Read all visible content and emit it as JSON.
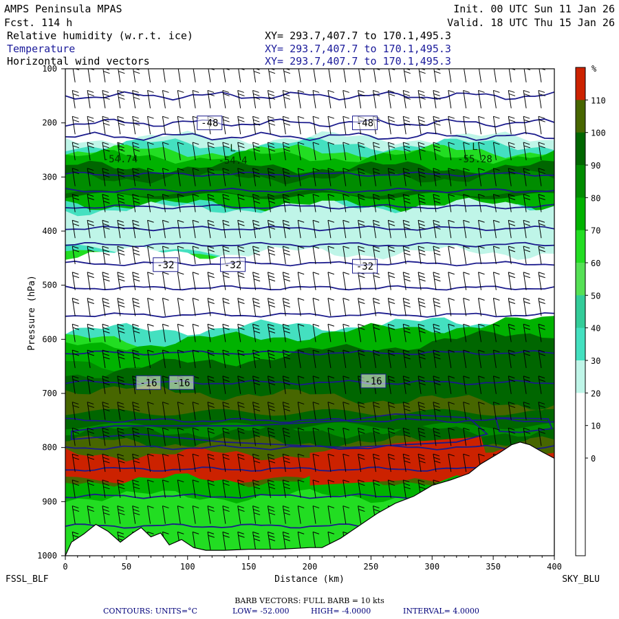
{
  "header": {
    "model": "AMPS Peninsula MPAS",
    "fcst": "Fcst.  114 h",
    "init": "Init. 00 UTC Sun 11 Jan 26",
    "valid": "Valid. 18 UTC Thu 15 Jan 26",
    "fields": [
      {
        "name": "Relative humidity (w.r.t. ice)",
        "xy": "XY= 293.7,407.7 to 170.1,495.3",
        "color": "#000000"
      },
      {
        "name": "Temperature",
        "xy": "XY= 293.7,407.7 to 170.1,495.3",
        "color": "#1a1a9a"
      },
      {
        "name": "Horizontal wind vectors",
        "xy": "XY= 293.7,407.7 to 170.1,495.3",
        "color": "#000000"
      }
    ]
  },
  "chart_data": {
    "type": "cross-section",
    "title": "Relative humidity (w.r.t. ice), Temperature, Horizontal wind vectors",
    "xlabel": "Distance (km)",
    "ylabel": "Pressure (hPa)",
    "x_range": [
      0,
      400
    ],
    "y_range": [
      1000,
      100
    ],
    "x_ticks": [
      0,
      50,
      100,
      150,
      200,
      250,
      300,
      350,
      400
    ],
    "y_ticks": [
      100,
      200,
      300,
      400,
      500,
      600,
      700,
      800,
      900,
      1000
    ],
    "left_endpoint": "FSSL_BLF",
    "right_endpoint": "SKY_BLU",
    "colorbar": {
      "unit": "%",
      "labels": [
        110,
        100,
        90,
        80,
        70,
        60,
        50,
        40,
        30,
        20,
        10,
        0
      ],
      "colors": [
        "#cc2200",
        "#476600",
        "#006600",
        "#008c00",
        "#00b200",
        "#22dd22",
        "#55e055",
        "#33cc99",
        "#44e0c0",
        "#bff5e8",
        "#ffffff",
        "#ffffff",
        "#ffffff",
        "#ffffff",
        "#ffffff"
      ]
    },
    "temperature_labels": [
      {
        "text": "-48",
        "x": 118,
        "p": 200
      },
      {
        "text": "-48",
        "x": 245,
        "p": 200
      },
      {
        "text": "-32",
        "x": 82,
        "p": 462
      },
      {
        "text": "-32",
        "x": 137,
        "p": 462
      },
      {
        "text": "-32",
        "x": 245,
        "p": 465
      },
      {
        "text": "-16",
        "x": 68,
        "p": 680
      },
      {
        "text": "-16",
        "x": 95,
        "p": 680
      },
      {
        "text": "-16",
        "x": 252,
        "p": 677
      }
    ],
    "minima": [
      {
        "text": "-54.74",
        "x": 45,
        "p": 265
      },
      {
        "text": "-54.4",
        "x": 137,
        "p": 268
      },
      {
        "text": "-55.28",
        "x": 335,
        "p": 265
      }
    ],
    "isotherm_levels_hPa": [
      150,
      200,
      225,
      295,
      325,
      355,
      395,
      425,
      460,
      505,
      555,
      625,
      680,
      750,
      800,
      840,
      890,
      945
    ],
    "terrain_km_hPa": [
      [
        0,
        1000
      ],
      [
        5,
        975
      ],
      [
        15,
        960
      ],
      [
        25,
        942
      ],
      [
        35,
        955
      ],
      [
        45,
        975
      ],
      [
        55,
        958
      ],
      [
        62,
        948
      ],
      [
        70,
        965
      ],
      [
        78,
        958
      ],
      [
        85,
        980
      ],
      [
        95,
        970
      ],
      [
        105,
        985
      ],
      [
        115,
        990
      ],
      [
        130,
        990
      ],
      [
        150,
        988
      ],
      [
        175,
        988
      ],
      [
        200,
        985
      ],
      [
        210,
        985
      ],
      [
        225,
        968
      ],
      [
        240,
        945
      ],
      [
        255,
        922
      ],
      [
        270,
        903
      ],
      [
        285,
        890
      ],
      [
        300,
        870
      ],
      [
        315,
        860
      ],
      [
        330,
        848
      ],
      [
        340,
        830
      ],
      [
        355,
        810
      ],
      [
        365,
        795
      ],
      [
        372,
        790
      ],
      [
        380,
        795
      ],
      [
        390,
        808
      ],
      [
        400,
        820
      ]
    ],
    "wind": {
      "barb_units": "kts",
      "full_barb": 10
    }
  },
  "footer": {
    "barb_text": "BARB VECTORS:  FULL BARB = 10 kts",
    "contours_label": "CONTOURS:  UNITS=°C",
    "low": "LOW= -52.000",
    "high": "HIGH= -4.0000",
    "interval": "INTERVAL=    4.0000"
  }
}
